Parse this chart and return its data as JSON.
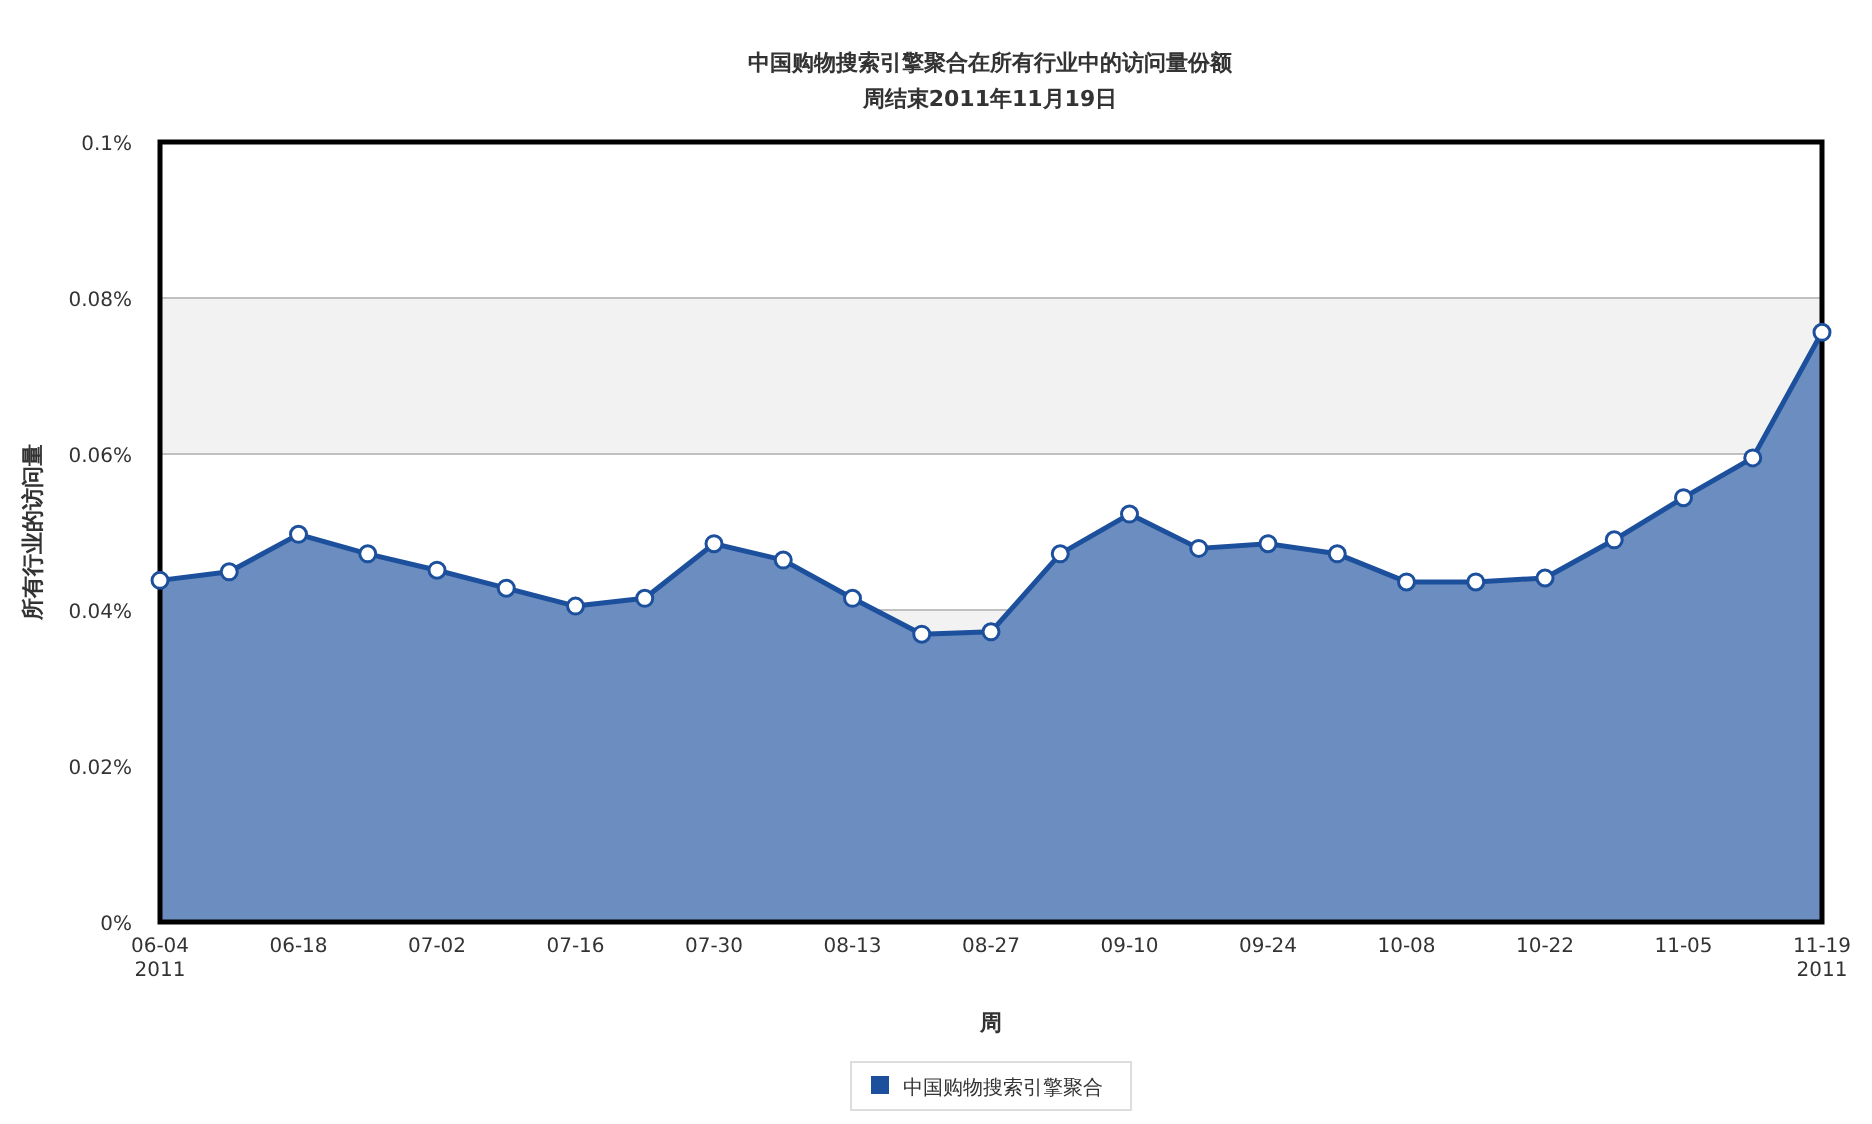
{
  "chart_data": {
    "type": "area",
    "title": "中国购物搜索引擎聚合在所有行业中的访问量份额",
    "subtitle": "周结束2011年11月19日",
    "xlabel": "周",
    "ylabel": "所有行业的访问量",
    "categories": [
      "06-04\n2011",
      null,
      "06-18",
      null,
      "07-02",
      null,
      "07-16",
      null,
      "07-30",
      null,
      "08-13",
      null,
      "08-27",
      null,
      "09-10",
      null,
      "09-24",
      null,
      "10-08",
      null,
      "10-22",
      null,
      "11-05",
      null,
      "11-19\n2011"
    ],
    "series": [
      {
        "name": "中国购物搜索引擎聚合",
        "color": "#1c4f9c",
        "values": [
          0.0438,
          0.0449,
          0.0497,
          0.0472,
          0.0451,
          0.0428,
          0.0405,
          0.0415,
          0.0485,
          0.0464,
          0.0415,
          0.0369,
          0.0372,
          0.0472,
          0.0523,
          0.0479,
          0.0485,
          0.0472,
          0.0436,
          0.0436,
          0.0441,
          0.049,
          0.0544,
          0.0595,
          0.0756
        ]
      }
    ],
    "ylim": [
      0,
      0.1
    ],
    "yticks": [
      {
        "value": 0,
        "label": "0%"
      },
      {
        "value": 0.02,
        "label": "0.02%"
      },
      {
        "value": 0.04,
        "label": "0.04%"
      },
      {
        "value": 0.06,
        "label": "0.06%"
      },
      {
        "value": 0.08,
        "label": "0.08%"
      },
      {
        "value": 0.1,
        "label": "0.1%"
      }
    ],
    "bands": [
      {
        "axis": "y",
        "from": 0.02,
        "to": 0.04,
        "color": "#f2f2f2"
      },
      {
        "axis": "y",
        "from": 0.06,
        "to": 0.08,
        "color": "#f2f2f2"
      }
    ],
    "grid": "y",
    "legend": "bottom",
    "marker": "circle"
  }
}
